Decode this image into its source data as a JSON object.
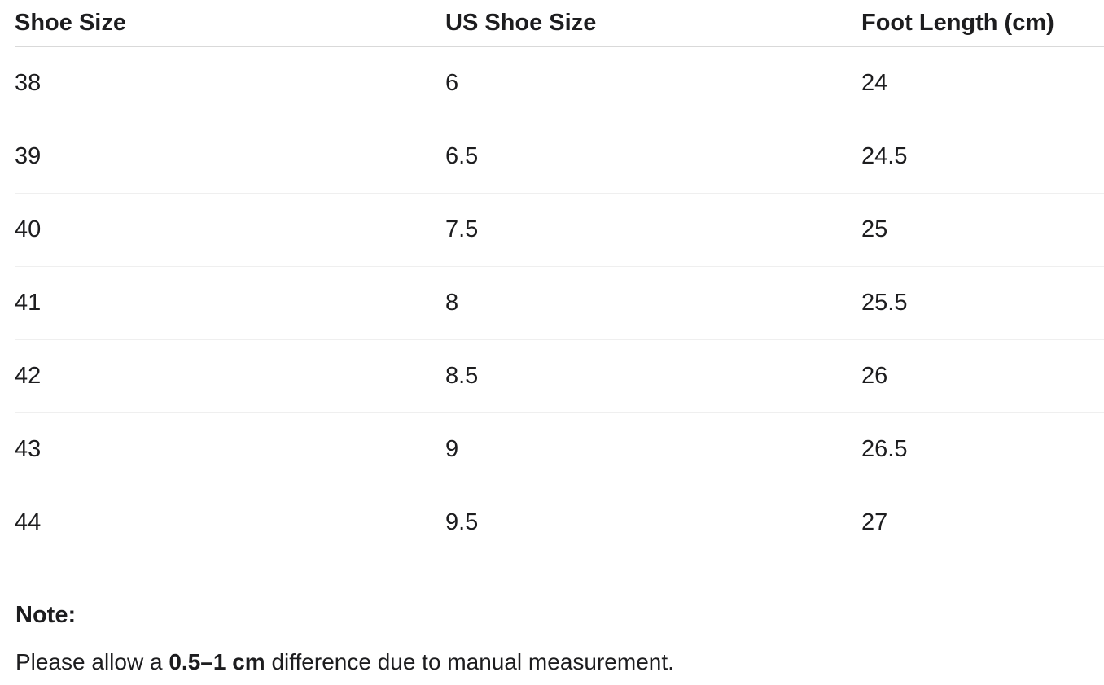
{
  "table": {
    "headers": [
      "Shoe Size",
      "US Shoe Size",
      "Foot Length (cm)"
    ],
    "rows": [
      [
        "38",
        "6",
        "24"
      ],
      [
        "39",
        "6.5",
        "24.5"
      ],
      [
        "40",
        "7.5",
        "25"
      ],
      [
        "41",
        "8",
        "25.5"
      ],
      [
        "42",
        "8.5",
        "26"
      ],
      [
        "43",
        "9",
        "26.5"
      ],
      [
        "44",
        "9.5",
        "27"
      ]
    ]
  },
  "note": {
    "heading": "Note:",
    "text_before": "Please allow a ",
    "bold": "0.5–1 cm",
    "text_after": " difference due to manual measurement."
  },
  "colors": {
    "text": "#1d1d1f",
    "header_divider": "#d9d9d9",
    "row_divider": "#efefef",
    "background": "#ffffff"
  }
}
